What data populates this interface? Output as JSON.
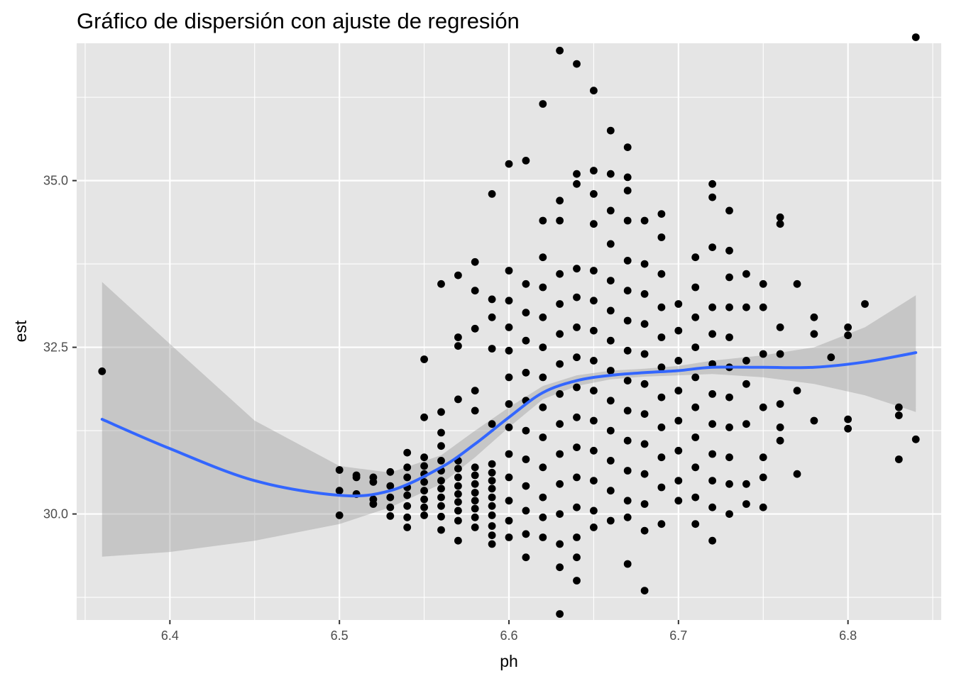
{
  "chart_data": {
    "type": "scatter",
    "title": "Gráfico de dispersión con ajuste de regresión",
    "xlabel": "ph",
    "ylabel": "est",
    "xlim": [
      6.345,
      6.855
    ],
    "ylim": [
      28.41,
      37.06
    ],
    "x_ticks": [
      6.4,
      6.5,
      6.6,
      6.7,
      6.8
    ],
    "x_tick_labels": [
      "6.4",
      "6.5",
      "6.6",
      "6.7",
      "6.8"
    ],
    "y_ticks": [
      30.0,
      32.5,
      35.0
    ],
    "y_tick_labels": [
      "30.0",
      "32.5",
      "35.0"
    ],
    "grid": true,
    "colors": {
      "panel": "#e5e5e5",
      "grid": "#ffffff",
      "points": "#000000",
      "smooth_line": "#3366ff",
      "confidence_band": "#999999"
    },
    "points": [
      [
        6.36,
        32.14
      ],
      [
        6.5,
        30.66
      ],
      [
        6.5,
        30.35
      ],
      [
        6.5,
        29.98
      ],
      [
        6.51,
        30.58
      ],
      [
        6.51,
        30.55
      ],
      [
        6.51,
        30.3
      ],
      [
        6.52,
        30.55
      ],
      [
        6.52,
        30.48
      ],
      [
        6.52,
        30.22
      ],
      [
        6.52,
        30.15
      ],
      [
        6.53,
        30.63
      ],
      [
        6.53,
        30.42
      ],
      [
        6.53,
        30.25
      ],
      [
        6.53,
        30.1
      ],
      [
        6.53,
        29.97
      ],
      [
        6.54,
        30.92
      ],
      [
        6.54,
        30.7
      ],
      [
        6.54,
        30.55
      ],
      [
        6.54,
        30.4
      ],
      [
        6.54,
        30.28
      ],
      [
        6.54,
        30.12
      ],
      [
        6.54,
        29.95
      ],
      [
        6.54,
        29.8
      ],
      [
        6.55,
        32.32
      ],
      [
        6.55,
        31.45
      ],
      [
        6.55,
        30.85
      ],
      [
        6.55,
        30.72
      ],
      [
        6.55,
        30.6
      ],
      [
        6.55,
        30.48
      ],
      [
        6.55,
        30.35
      ],
      [
        6.55,
        30.22
      ],
      [
        6.55,
        30.1
      ],
      [
        6.55,
        29.98
      ],
      [
        6.56,
        33.45
      ],
      [
        6.56,
        31.53
      ],
      [
        6.56,
        31.22
      ],
      [
        6.56,
        31.02
      ],
      [
        6.56,
        30.8
      ],
      [
        6.56,
        30.65
      ],
      [
        6.56,
        30.5
      ],
      [
        6.56,
        30.38
      ],
      [
        6.56,
        30.25
      ],
      [
        6.56,
        30.12
      ],
      [
        6.56,
        29.96
      ],
      [
        6.56,
        29.76
      ],
      [
        6.57,
        33.58
      ],
      [
        6.57,
        32.65
      ],
      [
        6.57,
        32.52
      ],
      [
        6.57,
        31.72
      ],
      [
        6.57,
        30.8
      ],
      [
        6.57,
        30.68
      ],
      [
        6.57,
        30.55
      ],
      [
        6.57,
        30.42
      ],
      [
        6.57,
        30.3
      ],
      [
        6.57,
        30.18
      ],
      [
        6.57,
        30.05
      ],
      [
        6.57,
        29.9
      ],
      [
        6.57,
        29.6
      ],
      [
        6.58,
        33.78
      ],
      [
        6.58,
        33.35
      ],
      [
        6.58,
        32.78
      ],
      [
        6.58,
        31.85
      ],
      [
        6.58,
        31.55
      ],
      [
        6.58,
        30.7
      ],
      [
        6.58,
        30.58
      ],
      [
        6.58,
        30.45
      ],
      [
        6.58,
        30.32
      ],
      [
        6.58,
        30.2
      ],
      [
        6.58,
        30.08
      ],
      [
        6.58,
        29.95
      ],
      [
        6.58,
        29.8
      ],
      [
        6.59,
        34.8
      ],
      [
        6.59,
        33.22
      ],
      [
        6.59,
        32.95
      ],
      [
        6.59,
        32.48
      ],
      [
        6.59,
        31.35
      ],
      [
        6.59,
        30.75
      ],
      [
        6.59,
        30.62
      ],
      [
        6.59,
        30.5
      ],
      [
        6.59,
        30.38
      ],
      [
        6.59,
        30.25
      ],
      [
        6.59,
        30.12
      ],
      [
        6.59,
        29.98
      ],
      [
        6.59,
        29.82
      ],
      [
        6.59,
        29.68
      ],
      [
        6.59,
        29.55
      ],
      [
        6.6,
        35.25
      ],
      [
        6.6,
        33.65
      ],
      [
        6.6,
        33.2
      ],
      [
        6.6,
        32.8
      ],
      [
        6.6,
        32.45
      ],
      [
        6.6,
        32.05
      ],
      [
        6.6,
        31.65
      ],
      [
        6.6,
        31.3
      ],
      [
        6.6,
        30.9
      ],
      [
        6.6,
        30.55
      ],
      [
        6.6,
        30.2
      ],
      [
        6.6,
        29.9
      ],
      [
        6.6,
        29.65
      ],
      [
        6.61,
        35.3
      ],
      [
        6.61,
        33.45
      ],
      [
        6.61,
        33.02
      ],
      [
        6.61,
        32.6
      ],
      [
        6.61,
        32.12
      ],
      [
        6.61,
        31.7
      ],
      [
        6.61,
        31.25
      ],
      [
        6.61,
        30.82
      ],
      [
        6.61,
        30.42
      ],
      [
        6.61,
        30.05
      ],
      [
        6.61,
        29.7
      ],
      [
        6.61,
        29.35
      ],
      [
        6.62,
        36.15
      ],
      [
        6.62,
        34.4
      ],
      [
        6.62,
        33.85
      ],
      [
        6.62,
        33.4
      ],
      [
        6.62,
        32.95
      ],
      [
        6.62,
        32.5
      ],
      [
        6.62,
        32.05
      ],
      [
        6.62,
        31.6
      ],
      [
        6.62,
        31.15
      ],
      [
        6.62,
        30.7
      ],
      [
        6.62,
        30.25
      ],
      [
        6.62,
        29.95
      ],
      [
        6.62,
        29.65
      ],
      [
        6.63,
        36.95
      ],
      [
        6.63,
        34.7
      ],
      [
        6.63,
        34.4
      ],
      [
        6.63,
        33.6
      ],
      [
        6.63,
        33.15
      ],
      [
        6.63,
        32.7
      ],
      [
        6.63,
        32.25
      ],
      [
        6.63,
        31.8
      ],
      [
        6.63,
        31.35
      ],
      [
        6.63,
        30.9
      ],
      [
        6.63,
        30.45
      ],
      [
        6.63,
        30.0
      ],
      [
        6.63,
        29.55
      ],
      [
        6.63,
        29.2
      ],
      [
        6.63,
        28.5
      ],
      [
        6.64,
        36.75
      ],
      [
        6.64,
        35.1
      ],
      [
        6.64,
        34.95
      ],
      [
        6.64,
        33.68
      ],
      [
        6.64,
        33.25
      ],
      [
        6.64,
        32.8
      ],
      [
        6.64,
        32.35
      ],
      [
        6.64,
        31.9
      ],
      [
        6.64,
        31.45
      ],
      [
        6.64,
        31.0
      ],
      [
        6.64,
        30.55
      ],
      [
        6.64,
        30.1
      ],
      [
        6.64,
        29.65
      ],
      [
        6.64,
        29.35
      ],
      [
        6.64,
        29.0
      ],
      [
        6.65,
        36.35
      ],
      [
        6.65,
        35.15
      ],
      [
        6.65,
        34.8
      ],
      [
        6.65,
        34.35
      ],
      [
        6.65,
        33.65
      ],
      [
        6.65,
        33.2
      ],
      [
        6.65,
        32.75
      ],
      [
        6.65,
        32.3
      ],
      [
        6.65,
        31.85
      ],
      [
        6.65,
        31.4
      ],
      [
        6.65,
        30.95
      ],
      [
        6.65,
        30.5
      ],
      [
        6.65,
        30.05
      ],
      [
        6.65,
        29.8
      ],
      [
        6.66,
        35.75
      ],
      [
        6.66,
        35.1
      ],
      [
        6.66,
        34.55
      ],
      [
        6.66,
        34.05
      ],
      [
        6.66,
        33.5
      ],
      [
        6.66,
        33.05
      ],
      [
        6.66,
        32.6
      ],
      [
        6.66,
        32.15
      ],
      [
        6.66,
        31.7
      ],
      [
        6.66,
        31.25
      ],
      [
        6.66,
        30.8
      ],
      [
        6.66,
        30.35
      ],
      [
        6.66,
        29.9
      ],
      [
        6.67,
        35.5
      ],
      [
        6.67,
        35.05
      ],
      [
        6.67,
        34.85
      ],
      [
        6.67,
        34.4
      ],
      [
        6.67,
        33.8
      ],
      [
        6.67,
        33.35
      ],
      [
        6.67,
        32.9
      ],
      [
        6.67,
        32.45
      ],
      [
        6.67,
        32.0
      ],
      [
        6.67,
        31.55
      ],
      [
        6.67,
        31.1
      ],
      [
        6.67,
        30.65
      ],
      [
        6.67,
        30.2
      ],
      [
        6.67,
        29.95
      ],
      [
        6.67,
        29.25
      ],
      [
        6.68,
        34.4
      ],
      [
        6.68,
        33.75
      ],
      [
        6.68,
        33.3
      ],
      [
        6.68,
        32.85
      ],
      [
        6.68,
        32.4
      ],
      [
        6.68,
        31.95
      ],
      [
        6.68,
        31.5
      ],
      [
        6.68,
        31.05
      ],
      [
        6.68,
        30.6
      ],
      [
        6.68,
        30.15
      ],
      [
        6.68,
        29.75
      ],
      [
        6.68,
        28.85
      ],
      [
        6.69,
        34.5
      ],
      [
        6.69,
        34.15
      ],
      [
        6.69,
        33.6
      ],
      [
        6.69,
        33.1
      ],
      [
        6.69,
        32.65
      ],
      [
        6.69,
        32.2
      ],
      [
        6.69,
        31.75
      ],
      [
        6.69,
        31.3
      ],
      [
        6.69,
        30.85
      ],
      [
        6.69,
        30.4
      ],
      [
        6.69,
        29.85
      ],
      [
        6.7,
        33.15
      ],
      [
        6.7,
        32.75
      ],
      [
        6.7,
        32.3
      ],
      [
        6.7,
        31.85
      ],
      [
        6.7,
        31.4
      ],
      [
        6.7,
        30.95
      ],
      [
        6.7,
        30.5
      ],
      [
        6.7,
        30.2
      ],
      [
        6.71,
        33.85
      ],
      [
        6.71,
        33.4
      ],
      [
        6.71,
        32.95
      ],
      [
        6.71,
        32.5
      ],
      [
        6.71,
        32.05
      ],
      [
        6.71,
        31.6
      ],
      [
        6.71,
        31.15
      ],
      [
        6.71,
        30.7
      ],
      [
        6.71,
        30.25
      ],
      [
        6.71,
        29.85
      ],
      [
        6.72,
        34.95
      ],
      [
        6.72,
        34.75
      ],
      [
        6.72,
        34.0
      ],
      [
        6.72,
        33.1
      ],
      [
        6.72,
        32.7
      ],
      [
        6.72,
        32.25
      ],
      [
        6.72,
        31.8
      ],
      [
        6.72,
        31.35
      ],
      [
        6.72,
        30.9
      ],
      [
        6.72,
        30.5
      ],
      [
        6.72,
        30.1
      ],
      [
        6.72,
        29.6
      ],
      [
        6.73,
        34.55
      ],
      [
        6.73,
        33.95
      ],
      [
        6.73,
        33.55
      ],
      [
        6.73,
        33.1
      ],
      [
        6.73,
        32.65
      ],
      [
        6.73,
        32.2
      ],
      [
        6.73,
        31.75
      ],
      [
        6.73,
        31.3
      ],
      [
        6.73,
        30.85
      ],
      [
        6.73,
        30.45
      ],
      [
        6.73,
        30.0
      ],
      [
        6.74,
        33.6
      ],
      [
        6.74,
        33.1
      ],
      [
        6.74,
        32.3
      ],
      [
        6.74,
        31.95
      ],
      [
        6.74,
        31.35
      ],
      [
        6.74,
        30.45
      ],
      [
        6.74,
        30.15
      ],
      [
        6.75,
        33.45
      ],
      [
        6.75,
        33.1
      ],
      [
        6.75,
        32.4
      ],
      [
        6.75,
        31.6
      ],
      [
        6.75,
        30.85
      ],
      [
        6.75,
        30.55
      ],
      [
        6.75,
        30.1
      ],
      [
        6.76,
        34.45
      ],
      [
        6.76,
        34.35
      ],
      [
        6.76,
        32.8
      ],
      [
        6.76,
        32.4
      ],
      [
        6.76,
        31.65
      ],
      [
        6.76,
        31.3
      ],
      [
        6.76,
        31.1
      ],
      [
        6.77,
        33.45
      ],
      [
        6.77,
        31.85
      ],
      [
        6.77,
        30.6
      ],
      [
        6.78,
        32.95
      ],
      [
        6.78,
        32.7
      ],
      [
        6.78,
        31.4
      ],
      [
        6.79,
        32.35
      ],
      [
        6.8,
        32.8
      ],
      [
        6.8,
        32.68
      ],
      [
        6.8,
        31.42
      ],
      [
        6.8,
        31.28
      ],
      [
        6.81,
        33.15
      ],
      [
        6.83,
        31.6
      ],
      [
        6.83,
        31.48
      ],
      [
        6.83,
        30.82
      ],
      [
        6.84,
        37.15
      ],
      [
        6.84,
        31.12
      ]
    ],
    "smooth_fit": {
      "method": "loess",
      "x": [
        6.36,
        6.4,
        6.45,
        6.5,
        6.53,
        6.56,
        6.58,
        6.6,
        6.62,
        6.64,
        6.66,
        6.68,
        6.7,
        6.72,
        6.75,
        6.78,
        6.81,
        6.84
      ],
      "y": [
        31.42,
        30.98,
        30.5,
        30.28,
        30.35,
        30.7,
        31.05,
        31.45,
        31.82,
        32.0,
        32.08,
        32.12,
        32.15,
        32.2,
        32.2,
        32.2,
        32.28,
        32.42
      ],
      "lower": [
        29.36,
        29.43,
        29.6,
        29.85,
        30.1,
        30.45,
        30.85,
        31.3,
        31.72,
        31.92,
        32.02,
        32.06,
        32.08,
        32.1,
        32.05,
        31.95,
        31.78,
        31.53
      ],
      "upper": [
        33.48,
        32.55,
        31.4,
        30.72,
        30.62,
        30.88,
        31.25,
        31.6,
        31.92,
        32.08,
        32.15,
        32.18,
        32.22,
        32.3,
        32.38,
        32.5,
        32.8,
        33.28
      ]
    }
  }
}
